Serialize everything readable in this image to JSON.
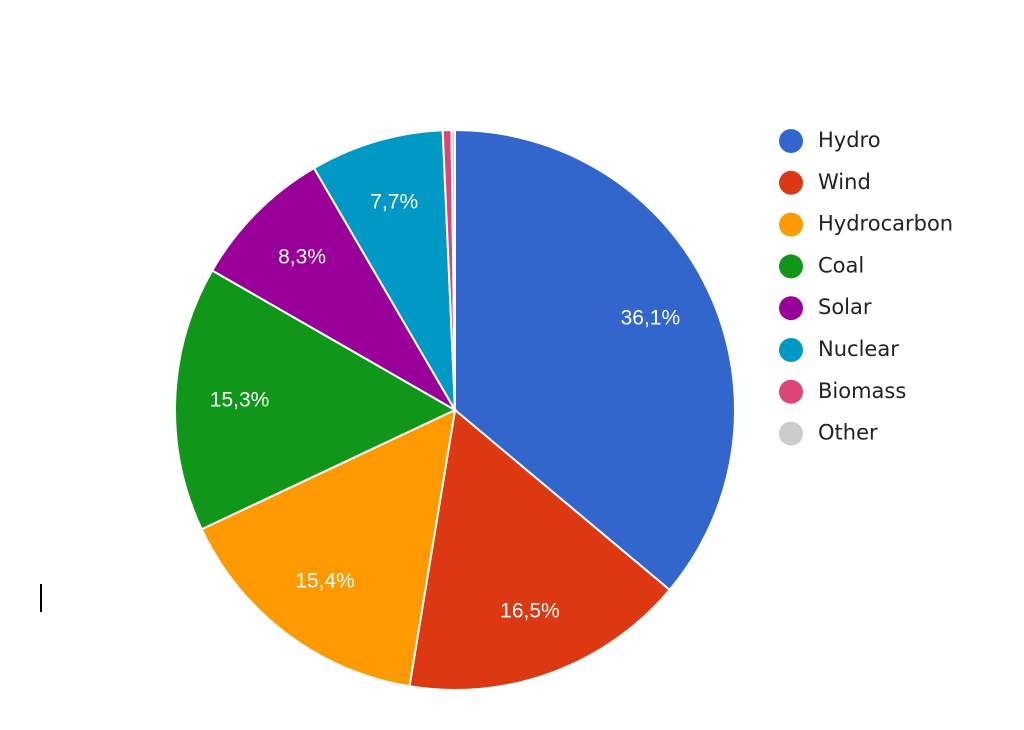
{
  "chart_data": {
    "type": "pie",
    "categories": [
      "Hydro",
      "Wind",
      "Hydrocarbon",
      "Coal",
      "Solar",
      "Nuclear",
      "Biomass",
      "Other"
    ],
    "values": [
      36.1,
      16.5,
      15.4,
      15.3,
      8.3,
      7.7,
      0.5,
      0.2
    ],
    "value_labels": [
      "36,1%",
      "16,5%",
      "15,4%",
      "15,3%",
      "8,3%",
      "7,7%",
      null,
      null
    ],
    "colors": [
      "#3366cc",
      "#dc3912",
      "#ff9900",
      "#109618",
      "#990099",
      "#0099c6",
      "#dd4477",
      "#cccccc"
    ],
    "legend": "right"
  }
}
